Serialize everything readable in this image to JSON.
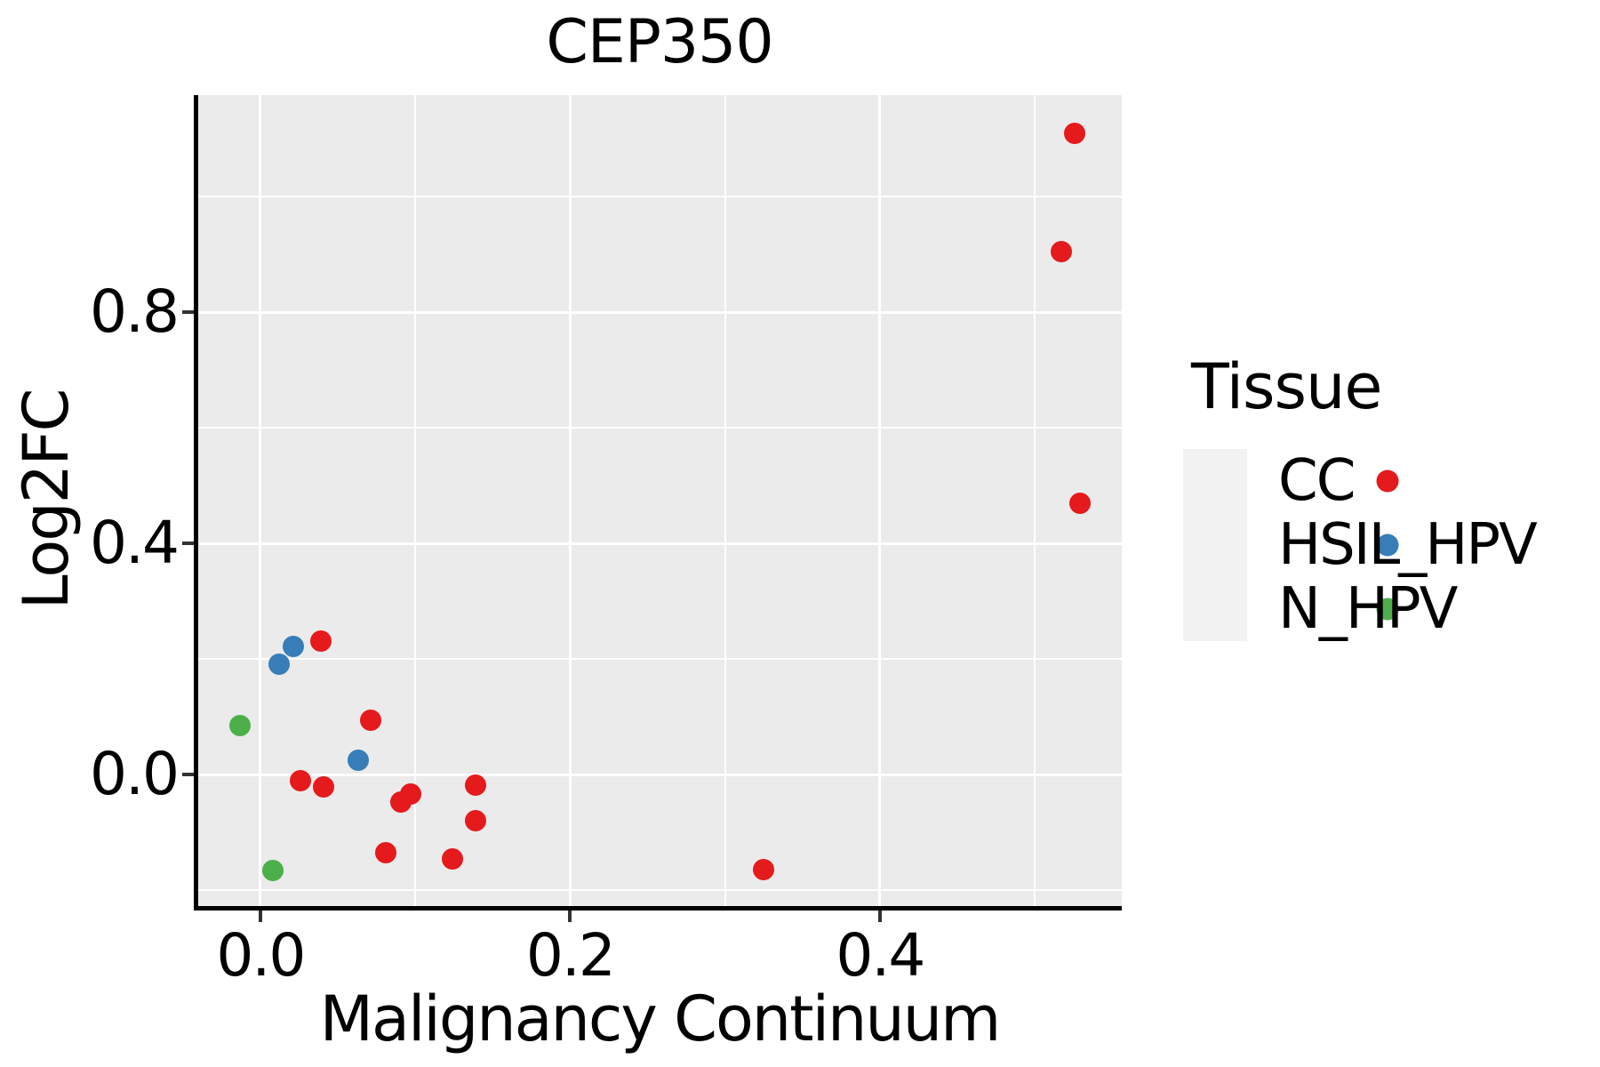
{
  "chart_data": {
    "type": "scatter",
    "title": "CEP350",
    "xlabel": "Malignancy Continuum",
    "ylabel": "Log2FC",
    "xlim": [
      -0.0407,
      0.5562
    ],
    "ylim": [
      -0.2292,
      1.1754
    ],
    "x_major_ticks": [
      0.0,
      0.2,
      0.4
    ],
    "x_minor_ticks": [
      0.1,
      0.3,
      0.5
    ],
    "y_major_ticks": [
      0.0,
      0.4,
      0.8
    ],
    "y_minor_ticks": [
      -0.2,
      0.2,
      0.6,
      1.0
    ],
    "x_tick_labels": [
      "0.0",
      "0.2",
      "0.4"
    ],
    "y_tick_labels": [
      "0.0",
      "0.4",
      "0.8"
    ],
    "grid": "major and minor white gridlines on gray panel",
    "legend_position": "right",
    "legend_title": "Tissue",
    "series": [
      {
        "name": "CC",
        "color": "#E41A1C",
        "points": [
          [
            0.526,
            1.109
          ],
          [
            0.517,
            0.905
          ],
          [
            0.529,
            0.469
          ],
          [
            0.039,
            0.231
          ],
          [
            0.071,
            0.094
          ],
          [
            0.026,
            -0.011
          ],
          [
            0.041,
            -0.022
          ],
          [
            0.097,
            -0.034
          ],
          [
            0.091,
            -0.048
          ],
          [
            0.139,
            -0.019
          ],
          [
            0.139,
            -0.08
          ],
          [
            0.081,
            -0.135
          ],
          [
            0.124,
            -0.146
          ],
          [
            0.325,
            -0.165
          ]
        ]
      },
      {
        "name": "HSIL_HPV",
        "color": "#377EB8",
        "points": [
          [
            0.021,
            0.222
          ],
          [
            0.012,
            0.191
          ],
          [
            0.063,
            0.024
          ]
        ]
      },
      {
        "name": "N_HPV",
        "color": "#4DAF4A",
        "points": [
          [
            -0.013,
            0.085
          ],
          [
            0.008,
            -0.166
          ]
        ]
      }
    ]
  },
  "style": {
    "panel_bg": "#EBEBEB",
    "grid_color": "#FFFFFF",
    "axis_line_color": "#000000",
    "tick_mark_color": "#333333",
    "text_color": "#000000",
    "legend_key_bg": "#F2F2F2"
  }
}
